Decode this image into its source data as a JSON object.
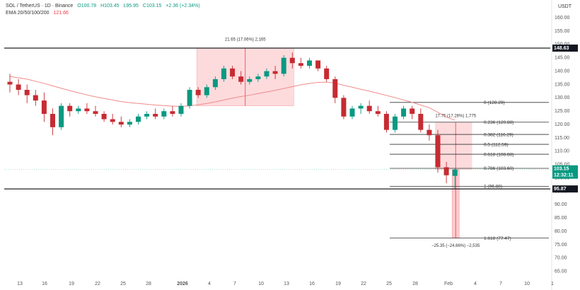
{
  "header": {
    "symbol": "SOL / TetherUS · 1D · Binance",
    "open": "O100.78",
    "high": "H103.45",
    "low": "L95.95",
    "close": "C103.15",
    "change": "+2.36 (+2.34%)",
    "ema_label": "EMA 20/50/100/200",
    "ema_value": "121.66",
    "currency": "USDT"
  },
  "chart_data": {
    "type": "candlestick",
    "y_axis_ticks": [
      "160.00",
      "155.00",
      "150.00",
      "145.00",
      "140.00",
      "135.00",
      "130.00",
      "125.00",
      "120.00",
      "115.00",
      "110.00",
      "105.00",
      "100.00",
      "95.00",
      "90.00",
      "85.00",
      "80.00",
      "75.00",
      "70.00",
      "65.00"
    ],
    "y_range": [
      62,
      164
    ],
    "x_axis_ticks": [
      {
        "label": "13",
        "bold": false
      },
      {
        "label": "16",
        "bold": false
      },
      {
        "label": "19",
        "bold": false
      },
      {
        "label": "22",
        "bold": false
      },
      {
        "label": "25",
        "bold": false
      },
      {
        "label": "28",
        "bold": false
      },
      {
        "label": "2026",
        "bold": true
      },
      {
        "label": "4",
        "bold": false
      },
      {
        "label": "7",
        "bold": false
      },
      {
        "label": "10",
        "bold": false
      },
      {
        "label": "13",
        "bold": false
      },
      {
        "label": "16",
        "bold": false
      },
      {
        "label": "19",
        "bold": false
      },
      {
        "label": "22",
        "bold": false
      },
      {
        "label": "25",
        "bold": false
      },
      {
        "label": "28",
        "bold": false
      },
      {
        "label": "Feb",
        "bold": false
      },
      {
        "label": "4",
        "bold": false
      },
      {
        "label": "7",
        "bold": false
      },
      {
        "label": "10",
        "bold": false
      },
      {
        "label": "1",
        "bold": false
      }
    ],
    "candles": [
      [
        136,
        139,
        132,
        135
      ],
      [
        135,
        137,
        131,
        133
      ],
      [
        133,
        135,
        128,
        131
      ],
      [
        131,
        133,
        127,
        129
      ],
      [
        129,
        132,
        121,
        124
      ],
      [
        124,
        126,
        116,
        119
      ],
      [
        119,
        128,
        118,
        127
      ],
      [
        127,
        128,
        123,
        125
      ],
      [
        125,
        127,
        124,
        126
      ],
      [
        126,
        128,
        124,
        125
      ],
      [
        125,
        127,
        123,
        124
      ],
      [
        124,
        125,
        121,
        122
      ],
      [
        122,
        124,
        120,
        121
      ],
      [
        121,
        123,
        119,
        120
      ],
      [
        120,
        122,
        119,
        121
      ],
      [
        121,
        124,
        120,
        123
      ],
      [
        123,
        125,
        122,
        124
      ],
      [
        124,
        126,
        122,
        123
      ],
      [
        123,
        126,
        122,
        125
      ],
      [
        125,
        127,
        123,
        124
      ],
      [
        124,
        128,
        123,
        127
      ],
      [
        127,
        134,
        126,
        133
      ],
      [
        133,
        134,
        130,
        131
      ],
      [
        131,
        135,
        130,
        134
      ],
      [
        134,
        138,
        133,
        137
      ],
      [
        137,
        142,
        136,
        141
      ],
      [
        141,
        142,
        137,
        138
      ],
      [
        138,
        140,
        135,
        136
      ],
      [
        136,
        138,
        135,
        137
      ],
      [
        137,
        139,
        136,
        138
      ],
      [
        138,
        141,
        137,
        140
      ],
      [
        140,
        142,
        137,
        139
      ],
      [
        139,
        146,
        138,
        145
      ],
      [
        145,
        147,
        141,
        143
      ],
      [
        143,
        145,
        141,
        142
      ],
      [
        142,
        145,
        141,
        144
      ],
      [
        144,
        144,
        140,
        141
      ],
      [
        141,
        142,
        136,
        137
      ],
      [
        137,
        138,
        128,
        130
      ],
      [
        130,
        131,
        122,
        123
      ],
      [
        123,
        127,
        122,
        126
      ],
      [
        126,
        128,
        124,
        127
      ],
      [
        127,
        129,
        124,
        125
      ],
      [
        125,
        127,
        123,
        124
      ],
      [
        124,
        125,
        117,
        118
      ],
      [
        118,
        124,
        117,
        123
      ],
      [
        123,
        127,
        122,
        126
      ],
      [
        126,
        127,
        122,
        124
      ],
      [
        124,
        126,
        117,
        118
      ],
      [
        118,
        120,
        114,
        116
      ],
      [
        116,
        118,
        102,
        104
      ],
      [
        104,
        106,
        98,
        101
      ],
      [
        100.78,
        103.45,
        95.95,
        103.15
      ]
    ],
    "ema_points": [
      138,
      137.5,
      137,
      136.2,
      135.4,
      134.5,
      133.6,
      132.7,
      131.9,
      131.1,
      130.4,
      129.8,
      129.2,
      128.6,
      128.2,
      127.9,
      127.6,
      127.3,
      127.1,
      126.9,
      126.8,
      127,
      127.4,
      127.9,
      128.5,
      129.2,
      129.9,
      130.5,
      131,
      131.6,
      132.2,
      132.8,
      133.5,
      134.2,
      134.9,
      135.4,
      135.8,
      135.9,
      135.5,
      134.7,
      134,
      133.2,
      132.5,
      131.7,
      130.9,
      130.1,
      129.2,
      128.3,
      127.3,
      126.3,
      124.6,
      122.8,
      121.66
    ],
    "resistance_level": 148.63,
    "support_level": 95.87,
    "fib_levels": [
      {
        "text": "0 (128.29)",
        "price": 128.29
      },
      {
        "text": "0.236 (120.88)",
        "price": 120.88
      },
      {
        "text": "0.382 (116.29)",
        "price": 116.29
      },
      {
        "text": "0.5 (112.59)",
        "price": 112.59
      },
      {
        "text": "0.618 (108.88)",
        "price": 108.88
      },
      {
        "text": "0.786 (103.60)",
        "price": 103.6
      },
      {
        "text": "1 (96.88)",
        "price": 96.88
      },
      {
        "text": "1.618 (77.47)",
        "price": 77.47
      }
    ],
    "measure_up": {
      "text": "21.65 (17.06%) 2,165",
      "price_from": 127.0,
      "price_to": 148.6
    },
    "measure_drop_1": {
      "text": "17.75 (17.26%) 1,775",
      "price_from": 120.9,
      "price_to": 103.1
    },
    "measure_drop_2": {
      "text": "−25.35 (−24.66%) −2,535",
      "price_from": 103.1,
      "price_to": 77.5
    },
    "price_labels": {
      "resistance": "148.63",
      "support": "95.87",
      "current": "103.15",
      "countdown": "12:32:11"
    }
  }
}
